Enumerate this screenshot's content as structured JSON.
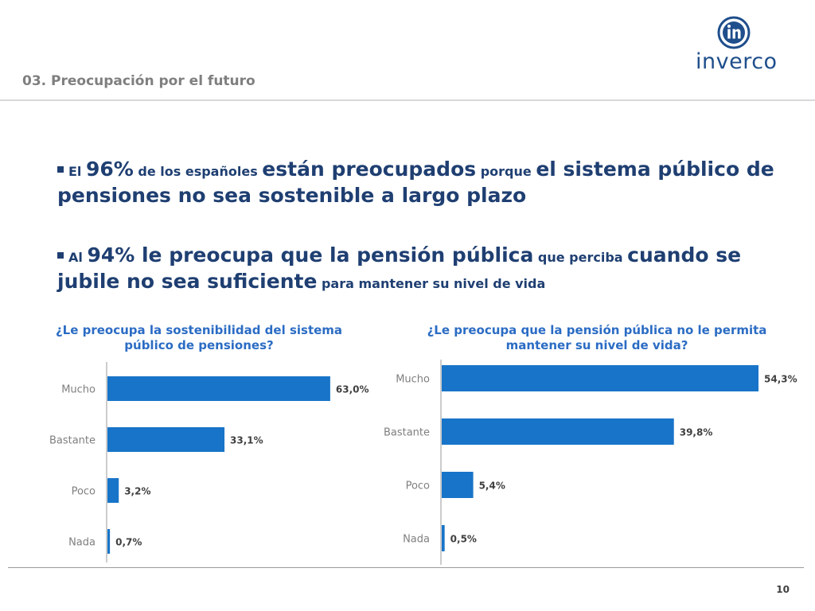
{
  "header": {
    "section_title": "03. Preocupación por el futuro",
    "logo_text": "inverco",
    "logo_icon": "in-circle-logo-icon"
  },
  "bullets": [
    {
      "segments": [
        {
          "text": "El ",
          "size": "sm"
        },
        {
          "text": "96%",
          "size": "lg"
        },
        {
          "text": " de los españoles ",
          "size": "sm"
        },
        {
          "text": "están preocupados",
          "size": "lg"
        },
        {
          "text": " porque ",
          "size": "sm"
        },
        {
          "text": "el sistema público de pensiones no sea sostenible a largo plazo",
          "size": "lg"
        }
      ]
    },
    {
      "segments": [
        {
          "text": "Al ",
          "size": "sm"
        },
        {
          "text": "94% le preocupa que la pensión pública",
          "size": "lg"
        },
        {
          "text": " que perciba ",
          "size": "sm"
        },
        {
          "text": "cuando se jubile no sea suficiente",
          "size": "lg"
        },
        {
          "text": " para mantener su nivel de vida",
          "size": "sm"
        }
      ]
    }
  ],
  "chart_data": [
    {
      "type": "bar",
      "orientation": "horizontal",
      "title": "¿Le preocupa la sostenibilidad del sistema público de pensiones?",
      "categories": [
        "Mucho",
        "Bastante",
        "Poco",
        "Nada"
      ],
      "values": [
        63.0,
        33.1,
        3.2,
        0.7
      ],
      "value_labels": [
        "63,0%",
        "33,1%",
        "3,2%",
        "0,7%"
      ],
      "xlim": [
        0,
        70
      ],
      "grid": false,
      "color": "#1874c8"
    },
    {
      "type": "bar",
      "orientation": "horizontal",
      "title": "¿Le preocupa que la pensión pública no le permita mantener su nivel de vida?",
      "categories": [
        "Mucho",
        "Bastante",
        "Poco",
        "Nada"
      ],
      "values": [
        54.3,
        39.8,
        5.4,
        0.5
      ],
      "value_labels": [
        "54,3%",
        "39,8%",
        "5,4%",
        "0,5%"
      ],
      "xlim": [
        0,
        54.3
      ],
      "grid": false,
      "color": "#1874c8"
    }
  ],
  "footer": {
    "page_number": "10"
  }
}
